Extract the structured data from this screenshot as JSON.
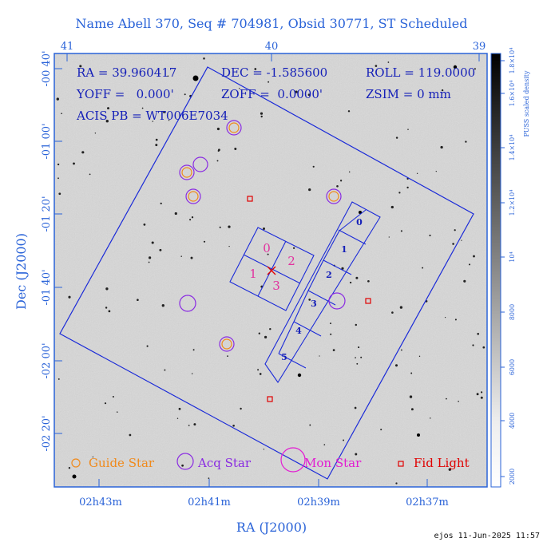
{
  "title": "Name Abell 370, Seq # 704981, Obsid 30771, ST Scheduled",
  "info": {
    "ra": "RA = 39.960417",
    "dec": "DEC = -1.585600",
    "roll": "ROLL = 119.0000",
    "yoff": "YOFF =   0.000'",
    "zoff": "ZOFF =  0.0000'",
    "zsim": "ZSIM = 0 mm",
    "acis": "ACIS PB = WT006E7034"
  },
  "axes": {
    "xlabel": "RA (J2000)",
    "ylabel": "Dec (J2000)",
    "top_ticks": [
      "41",
      "40",
      "39"
    ],
    "bottom_ticks": [
      "02h43m",
      "02h41m",
      "02h39m",
      "02h37m"
    ],
    "left_ticks": [
      "-00 40'",
      "-01 00'",
      "-01 20'",
      "-01 40'",
      "-02 00'",
      "-02 20'"
    ]
  },
  "colorbar": {
    "label": "PUSS scaled density",
    "ticks": [
      "2000",
      "4000",
      "6000",
      "8000",
      "10⁴",
      "1.2×10⁴",
      "1.4×10⁴",
      "1.6×10⁴",
      "1.8×10⁴"
    ]
  },
  "ccd_labels": {
    "aciss": [
      "0",
      "1",
      "2",
      "3",
      "4",
      "5"
    ],
    "acisi": [
      "0",
      "1",
      "2",
      "3"
    ]
  },
  "legend": {
    "guide": "Guide Star",
    "acq": "Acq Star",
    "mon": "Mon Star",
    "fid": "Fid Light"
  },
  "colors": {
    "title": "#2a63d8",
    "guide": "#f08a1c",
    "acq": "#8a2be2",
    "mon": "#e21cd2",
    "fid": "#e00000",
    "footprint": "#1a2ad8"
  },
  "timestamp": "ejos 11-Jun-2025 11:57"
}
